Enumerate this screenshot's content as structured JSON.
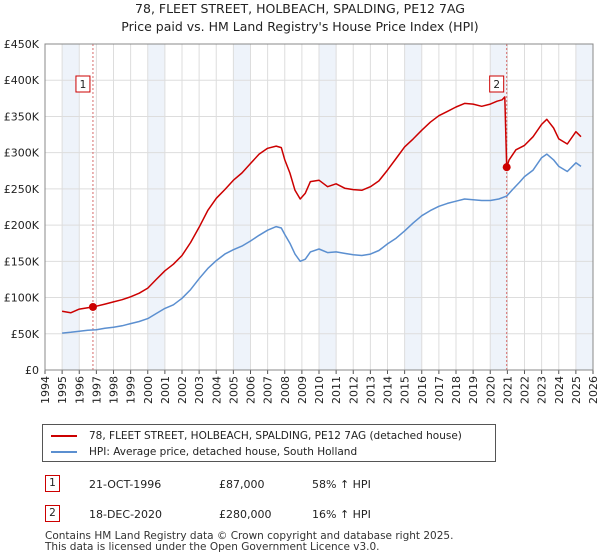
{
  "title_line1": "78, FLEET STREET, HOLBEACH, SPALDING, PE12 7AG",
  "title_line2": "Price paid vs. HM Land Registry's House Price Index (HPI)",
  "colors": {
    "price_line": "#cc0000",
    "hpi_line": "#5b8fd0",
    "grid": "#dddddd",
    "band": "#eef3fa"
  },
  "chart_data": {
    "type": "line",
    "xlim": [
      1994,
      2026
    ],
    "ylim": [
      0,
      450000
    ],
    "x_ticks": [
      "1994",
      "1995",
      "1996",
      "1997",
      "1998",
      "1999",
      "2000",
      "2001",
      "2002",
      "2003",
      "2004",
      "2005",
      "2006",
      "2007",
      "2008",
      "2009",
      "2010",
      "2011",
      "2012",
      "2013",
      "2014",
      "2015",
      "2016",
      "2017",
      "2018",
      "2019",
      "2020",
      "2021",
      "2022",
      "2023",
      "2024",
      "2025",
      "2026"
    ],
    "y_ticks": [
      {
        "value": 0,
        "label": "£0"
      },
      {
        "value": 50000,
        "label": "£50K"
      },
      {
        "value": 100000,
        "label": "£100K"
      },
      {
        "value": 150000,
        "label": "£150K"
      },
      {
        "value": 200000,
        "label": "£200K"
      },
      {
        "value": 250000,
        "label": "£250K"
      },
      {
        "value": 300000,
        "label": "£300K"
      },
      {
        "value": 350000,
        "label": "£350K"
      },
      {
        "value": 400000,
        "label": "£400K"
      },
      {
        "value": 450000,
        "label": "£450K"
      }
    ],
    "grid": true,
    "shaded_years": [
      1995,
      2000,
      2005,
      2010,
      2015,
      2020,
      2025
    ],
    "series": [
      {
        "name": "78, FLEET STREET, HOLBEACH, SPALDING, PE12 7AG (detached house)",
        "x": [
          1995.0,
          1995.5,
          1996.0,
          1996.5,
          1996.8,
          1997.0,
          1997.5,
          1998.0,
          1998.5,
          1999.0,
          1999.5,
          2000.0,
          2000.5,
          2001.0,
          2001.5,
          2002.0,
          2002.5,
          2003.0,
          2003.5,
          2004.0,
          2004.5,
          2005.0,
          2005.5,
          2006.0,
          2006.5,
          2007.0,
          2007.5,
          2007.8,
          2008.0,
          2008.3,
          2008.6,
          2008.9,
          2009.2,
          2009.5,
          2010.0,
          2010.5,
          2011.0,
          2011.5,
          2012.0,
          2012.5,
          2013.0,
          2013.5,
          2014.0,
          2014.5,
          2015.0,
          2015.5,
          2016.0,
          2016.5,
          2017.0,
          2017.5,
          2018.0,
          2018.5,
          2019.0,
          2019.5,
          2020.0,
          2020.4,
          2020.7,
          2020.85,
          2020.96,
          2021.1,
          2021.5,
          2022.0,
          2022.5,
          2023.0,
          2023.3,
          2023.7,
          2024.0,
          2024.5,
          2025.0,
          2025.3
        ],
        "values": [
          81000,
          79000,
          84000,
          86000,
          87000,
          88000,
          91000,
          94000,
          97000,
          101000,
          106000,
          113000,
          125000,
          137000,
          146000,
          158000,
          176000,
          197000,
          220000,
          237000,
          249000,
          262000,
          272000,
          285000,
          298000,
          306000,
          309000,
          307000,
          290000,
          272000,
          248000,
          236000,
          244000,
          260000,
          262000,
          253000,
          257000,
          251000,
          249000,
          248000,
          253000,
          261000,
          276000,
          292000,
          308000,
          319000,
          331000,
          342000,
          351000,
          357000,
          363000,
          368000,
          367000,
          364000,
          367000,
          371000,
          373000,
          377000,
          280000,
          290000,
          304000,
          310000,
          322000,
          339000,
          346000,
          334000,
          319000,
          312000,
          329000,
          322000
        ]
      },
      {
        "name": "HPI: Average price, detached house, South Holland",
        "x": [
          1995.0,
          1995.5,
          1996.0,
          1996.5,
          1997.0,
          1997.5,
          1998.0,
          1998.5,
          1999.0,
          1999.5,
          2000.0,
          2000.5,
          2001.0,
          2001.5,
          2002.0,
          2002.5,
          2003.0,
          2003.5,
          2004.0,
          2004.5,
          2005.0,
          2005.5,
          2006.0,
          2006.5,
          2007.0,
          2007.5,
          2007.8,
          2008.0,
          2008.3,
          2008.6,
          2008.9,
          2009.2,
          2009.5,
          2010.0,
          2010.5,
          2011.0,
          2011.5,
          2012.0,
          2012.5,
          2013.0,
          2013.5,
          2014.0,
          2014.5,
          2015.0,
          2015.5,
          2016.0,
          2016.5,
          2017.0,
          2017.5,
          2018.0,
          2018.5,
          2019.0,
          2019.5,
          2020.0,
          2020.5,
          2020.96,
          2021.3,
          2021.7,
          2022.0,
          2022.5,
          2023.0,
          2023.3,
          2023.7,
          2024.0,
          2024.5,
          2025.0,
          2025.3
        ],
        "values": [
          51000,
          52000,
          53500,
          55000,
          55500,
          57500,
          59000,
          61000,
          64000,
          67000,
          71000,
          78000,
          85000,
          90000,
          99000,
          111000,
          126000,
          140000,
          151000,
          160000,
          166000,
          171000,
          178000,
          186000,
          193000,
          198000,
          196000,
          187000,
          175000,
          160000,
          150000,
          153000,
          163000,
          167000,
          162000,
          163000,
          161000,
          159000,
          158000,
          160000,
          165000,
          174000,
          182000,
          192000,
          203000,
          213000,
          220000,
          226000,
          230000,
          233000,
          236000,
          235000,
          234000,
          234000,
          236000,
          240000,
          249000,
          259000,
          267000,
          276000,
          293000,
          298000,
          290000,
          281000,
          274000,
          286000,
          281000
        ]
      }
    ],
    "sales": [
      {
        "id": "1",
        "x": 1996.8,
        "y": 87000
      },
      {
        "id": "2",
        "x": 2020.96,
        "y": 280000
      }
    ]
  },
  "legend": {
    "price_label": "78, FLEET STREET, HOLBEACH, SPALDING, PE12 7AG (detached house)",
    "hpi_label": "HPI: Average price, detached house, South Holland"
  },
  "sales_table": [
    {
      "id": "1",
      "date": "21-OCT-1996",
      "price": "£87,000",
      "hpi": "58% ↑ HPI"
    },
    {
      "id": "2",
      "date": "18-DEC-2020",
      "price": "£280,000",
      "hpi": "16% ↑ HPI"
    }
  ],
  "footer_line1": "Contains HM Land Registry data © Crown copyright and database right 2025.",
  "footer_line2": "This data is licensed under the Open Government Licence v3.0."
}
